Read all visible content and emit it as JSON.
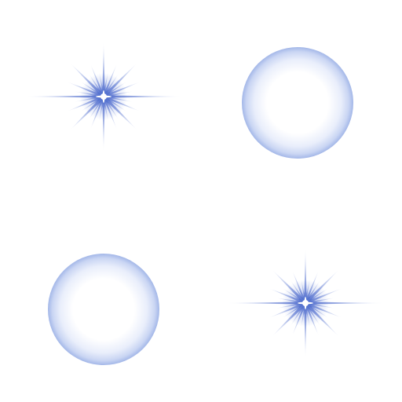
{
  "sprite_sheet": {
    "background": "#ffffff",
    "items": [
      {
        "kind": "sparkle",
        "icon": "sparkle-icon"
      },
      {
        "kind": "bubble",
        "icon": "bubble-icon"
      },
      {
        "kind": "bubble",
        "icon": "bubble-icon"
      },
      {
        "kind": "sparkle",
        "icon": "sparkle-icon"
      }
    ],
    "colors": {
      "glow_blue": "#5a78d2",
      "bubble_rim": "#a3b7e8",
      "bubble_center": "#ffffff",
      "sparkle_core": "#ffffff"
    }
  }
}
